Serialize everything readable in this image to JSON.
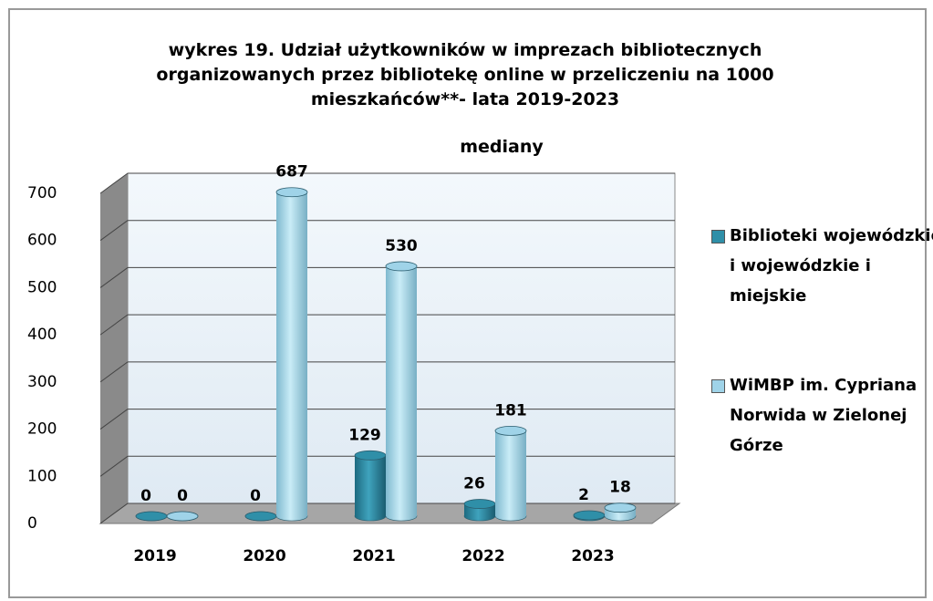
{
  "chart_data": {
    "type": "bar3d",
    "title": "wykres 19. Udział użytkowników w imprezach bibliotecznych organizowanych przez bibliotekę online w przeliczeniu na 1000 mieszkańców**- lata 2019-2023",
    "subtitle": "mediany",
    "categories": [
      "2019",
      "2020",
      "2021",
      "2022",
      "2023"
    ],
    "series": [
      {
        "name": "Biblioteki wojewódzkie i wojewódzkie i miejskie",
        "color": "#2f8fa8",
        "values": [
          0,
          0,
          129,
          26,
          2
        ]
      },
      {
        "name": "WiMBP im. Cypriana Norwida w Zielonej Górze",
        "color": "#9fd3e8",
        "values": [
          0,
          687,
          530,
          181,
          18
        ]
      }
    ],
    "ylim": [
      0,
      700
    ],
    "yticks": [
      0,
      100,
      200,
      300,
      400,
      500,
      600,
      700
    ],
    "grid": true,
    "legend": "right"
  }
}
